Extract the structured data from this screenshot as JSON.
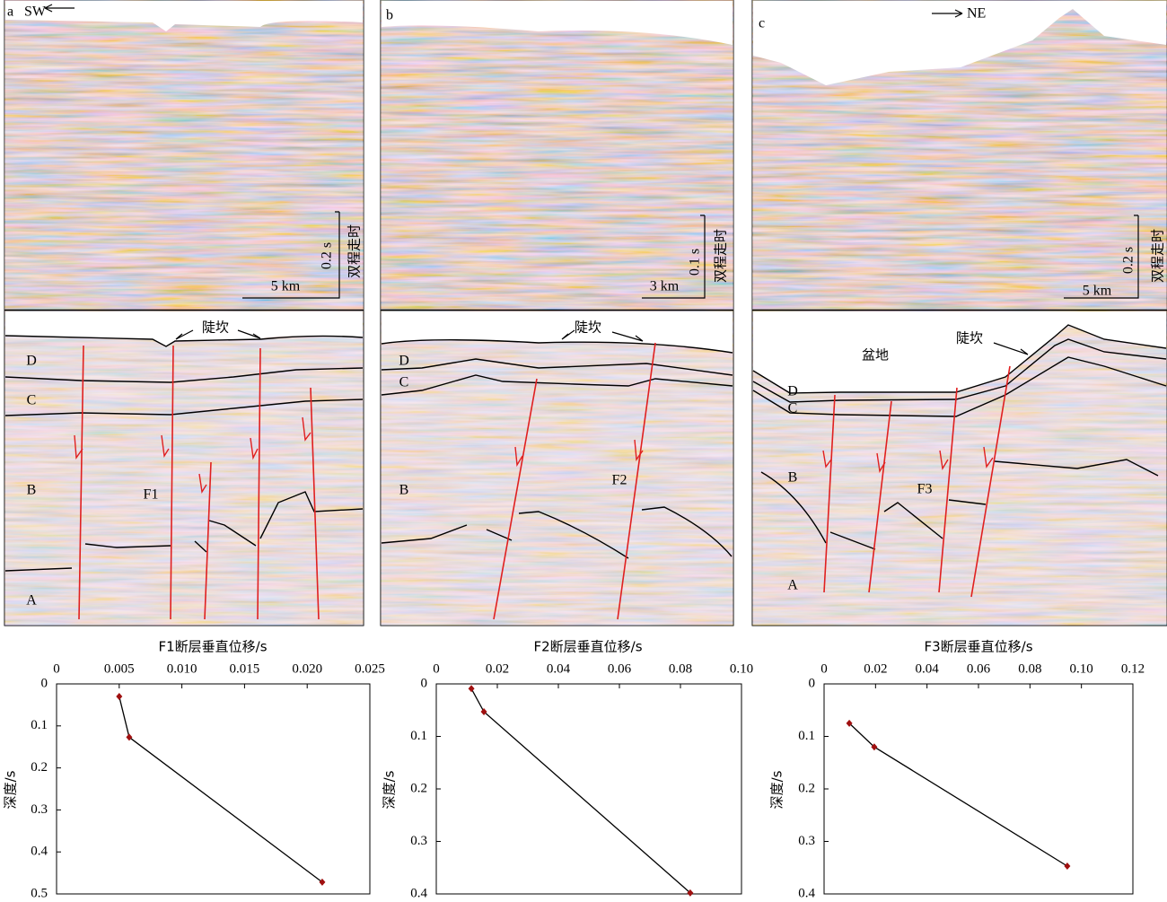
{
  "seismic_panels": [
    {
      "label": "a",
      "direction": "SW",
      "time_scale": "0.2 s",
      "time_axis": "双程走时",
      "distance_scale": "5 km",
      "escarpment": "陡坎",
      "units": [
        "D",
        "C",
        "B",
        "A"
      ],
      "fault": "F1"
    },
    {
      "label": "b",
      "time_scale": "0.1 s",
      "time_axis": "双程走时",
      "distance_scale": "3 km",
      "escarpment": "陡坎",
      "units": [
        "D",
        "C",
        "B"
      ],
      "fault": "F2"
    },
    {
      "label": "c",
      "direction": "NE",
      "time_scale": "0.2 s",
      "time_axis": "双程走时",
      "distance_scale": "5 km",
      "escarpment": "陡坎",
      "basin": "盆地",
      "units": [
        "D",
        "C",
        "B",
        "A"
      ],
      "fault": "F3"
    }
  ],
  "chart_data": [
    {
      "type": "line",
      "x_label": "F1断层垂直位移/s",
      "y_label": "深度/s",
      "x": [
        0.005,
        0.0058,
        0.0212
      ],
      "values": [
        0.03,
        0.127,
        0.472
      ],
      "color": "#000000",
      "marker_color": "#a01010",
      "xlim": [
        0,
        0.025
      ],
      "xticks": [
        0,
        0.005,
        {
          "value": 0.01,
          "label": "0.010"
        },
        0.015,
        {
          "value": 0.02,
          "label": "0.020"
        },
        0.025
      ],
      "ylim": [
        0,
        0.5
      ],
      "yticks": [
        0,
        0.1,
        0.2,
        0.3,
        0.4,
        0.5
      ],
      "y_inverted": true,
      "x_axis_position": "top"
    },
    {
      "type": "line",
      "x_label": "F2断层垂直位移/s",
      "y_label": "深度/s",
      "x": [
        0.0115,
        0.0156,
        0.0832
      ],
      "values": [
        0.009,
        0.053,
        0.398
      ],
      "color": "#000000",
      "marker_color": "#a01010",
      "xlim": [
        0,
        0.1
      ],
      "xticks": [
        0,
        0.02,
        0.04,
        0.06,
        0.08,
        {
          "value": 0.1,
          "label": "0.10"
        }
      ],
      "ylim": [
        0,
        0.4
      ],
      "yticks": [
        0,
        0.1,
        0.2,
        0.3,
        0.4
      ],
      "y_inverted": true,
      "x_axis_position": "top"
    },
    {
      "type": "line",
      "x_label": "F3断层垂直位移/s",
      "y_label": "深度/s",
      "x": [
        0.0098,
        0.0195,
        0.0945
      ],
      "values": [
        0.075,
        0.12,
        0.347
      ],
      "color": "#000000",
      "marker_color": "#a01010",
      "xlim": [
        0,
        0.12
      ],
      "xticks": [
        0,
        0.02,
        0.04,
        0.06,
        0.08,
        {
          "value": 0.1,
          "label": "0.10"
        },
        0.12
      ],
      "ylim": [
        0,
        0.4
      ],
      "yticks": [
        0,
        0.1,
        0.2,
        0.3,
        0.4
      ],
      "y_inverted": true,
      "x_axis_position": "top"
    }
  ]
}
